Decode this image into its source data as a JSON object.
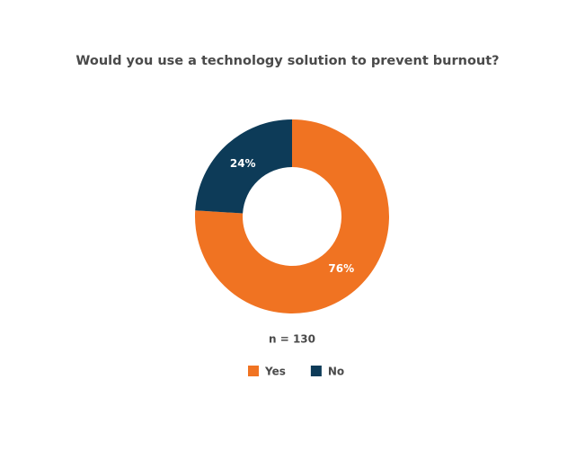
{
  "chart_data": {
    "type": "donut",
    "title": "Would you use a technology solution to prevent burnout?",
    "categories": [
      "Yes",
      "No"
    ],
    "values": [
      76,
      24
    ],
    "value_labels": [
      "76%",
      "24%"
    ],
    "colors": [
      "#f07322",
      "#0d3b58"
    ],
    "annotation": "n = 130"
  }
}
